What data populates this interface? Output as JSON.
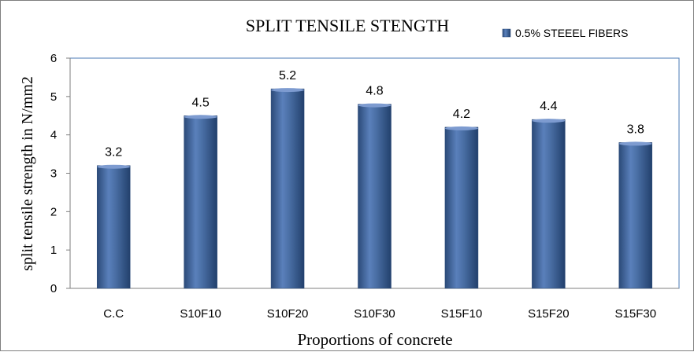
{
  "chart_data": {
    "type": "bar",
    "title": "SPLIT TENSILE  STENGTH",
    "xlabel": "Proportions of concrete",
    "ylabel": "split tensile strength in N/mm2",
    "categories": [
      "C.C",
      "S10F10",
      "S10F20",
      "S10F30",
      "S15F10",
      "S15F20",
      "S15F30"
    ],
    "series": [
      {
        "name": "0.5% STEEEL FIBERS",
        "values": [
          3.2,
          4.5,
          5.2,
          4.8,
          4.2,
          4.4,
          3.8
        ]
      }
    ],
    "data_labels": [
      "3.2",
      "4.5",
      "5.2",
      "4.8",
      "4.2",
      "4.4",
      "3.8"
    ],
    "yticks": [
      "0",
      "1",
      "2",
      "3",
      "4",
      "5",
      "6"
    ],
    "ylim": [
      0,
      6
    ],
    "grid": false,
    "legend_position": "top-right",
    "colors": {
      "bar": "#4a6fa5",
      "bar_dark": "#2b4a78",
      "bar_light": "#7d9bd0",
      "axis": "#7f7f7f",
      "plot_border": "#4a7ab5"
    }
  }
}
